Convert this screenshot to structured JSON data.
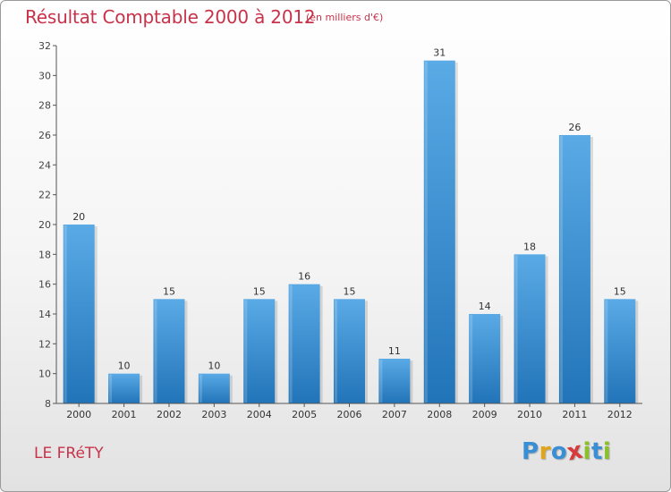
{
  "header": {
    "title": "Résultat Comptable 2000 à 2012",
    "subtitle": "(en milliers d'€)"
  },
  "footer": {
    "place": "LE FRéTY",
    "logo_letters": [
      "P",
      "r",
      "o",
      "x",
      "i",
      "t",
      "i"
    ],
    "logo_colors": [
      "#3a8fd4",
      "#e2a51a",
      "#3a8fd4",
      "#d63a3a",
      "#8bbf2c",
      "#3a8fd4",
      "#8bbf2c"
    ]
  },
  "colors": {
    "bar_light": "#5aaae6",
    "bar_dark": "#2174b8",
    "grid": "#d8d8d8",
    "axis": "#555555",
    "title": "#c8324a"
  },
  "chart_data": {
    "type": "bar",
    "title": "Résultat Comptable 2000 à 2012",
    "subtitle": "(en milliers d'€)",
    "xlabel": "",
    "ylabel": "",
    "categories": [
      "2000",
      "2001",
      "2002",
      "2003",
      "2004",
      "2005",
      "2006",
      "2007",
      "2008",
      "2009",
      "2010",
      "2011",
      "2012"
    ],
    "values": [
      20,
      10,
      15,
      10,
      15,
      16,
      15,
      11,
      31,
      14,
      18,
      26,
      15
    ],
    "ylim": [
      8,
      32
    ],
    "yticks": [
      8,
      10,
      12,
      14,
      16,
      18,
      20,
      22,
      24,
      26,
      28,
      30,
      32
    ],
    "grid": false,
    "legend": "none"
  }
}
